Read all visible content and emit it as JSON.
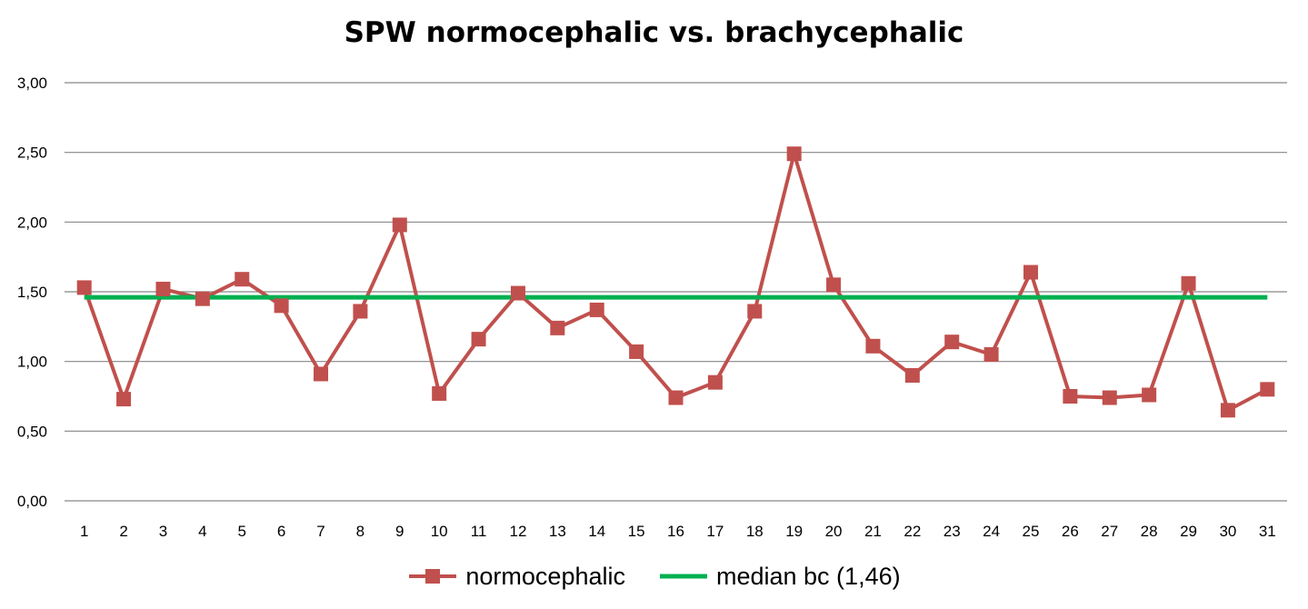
{
  "chart_data": {
    "type": "line",
    "title": "SPW normocephalic vs. brachycephalic",
    "xlabel": "",
    "ylabel": "",
    "categories": [
      "1",
      "2",
      "3",
      "4",
      "5",
      "6",
      "7",
      "8",
      "9",
      "10",
      "11",
      "12",
      "13",
      "14",
      "15",
      "16",
      "17",
      "18",
      "19",
      "20",
      "21",
      "22",
      "23",
      "24",
      "25",
      "26",
      "27",
      "28",
      "29",
      "30",
      "31"
    ],
    "ylim": [
      0,
      3
    ],
    "yticks": [
      "0,00",
      "0,50",
      "1,00",
      "1,50",
      "2,00",
      "2,50",
      "3,00"
    ],
    "ytick_values": [
      0,
      0.5,
      1.0,
      1.5,
      2.0,
      2.5,
      3.0
    ],
    "grid": true,
    "legend_position": "bottom",
    "series": [
      {
        "name": "normocephalic",
        "color": "#c0504d",
        "marker": "square",
        "values": [
          1.53,
          0.73,
          1.52,
          1.45,
          1.59,
          1.4,
          0.91,
          1.36,
          1.98,
          0.77,
          1.16,
          1.49,
          1.24,
          1.37,
          1.07,
          0.74,
          0.85,
          1.36,
          2.49,
          1.55,
          1.11,
          0.9,
          1.14,
          1.05,
          1.64,
          0.75,
          0.74,
          0.76,
          1.56,
          0.65,
          0.8
        ]
      },
      {
        "name": "median bc (1,46)",
        "color": "#00b050",
        "marker": "none",
        "values": [
          1.46,
          1.46,
          1.46,
          1.46,
          1.46,
          1.46,
          1.46,
          1.46,
          1.46,
          1.46,
          1.46,
          1.46,
          1.46,
          1.46,
          1.46,
          1.46,
          1.46,
          1.46,
          1.46,
          1.46,
          1.46,
          1.46,
          1.46,
          1.46,
          1.46,
          1.46,
          1.46,
          1.46,
          1.46,
          1.46,
          1.46
        ]
      }
    ]
  }
}
